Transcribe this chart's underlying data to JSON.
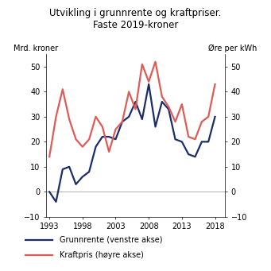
{
  "title": "Utvikling i grunnrente og kraftpriser.\nFaste 2019-kroner",
  "ylabel_left": "Mrd. kroner",
  "ylabel_right": "Øre per kWh",
  "xlabel_ticks": [
    1993,
    1998,
    2003,
    2008,
    2013,
    2018
  ],
  "ylim": [
    -10,
    55
  ],
  "yticks": [
    -10,
    0,
    10,
    20,
    30,
    40,
    50
  ],
  "xlim": [
    1992.5,
    2019.5
  ],
  "grunnrente_years": [
    1993,
    1994,
    1995,
    1996,
    1997,
    1998,
    1999,
    2000,
    2001,
    2002,
    2003,
    2004,
    2005,
    2006,
    2007,
    2008,
    2009,
    2010,
    2011,
    2012,
    2013,
    2014,
    2015,
    2016,
    2017,
    2018
  ],
  "grunnrente_values": [
    0,
    -4,
    9,
    10,
    3,
    6,
    8,
    18,
    22,
    22,
    21,
    28,
    30,
    36,
    29,
    43,
    26,
    36,
    33,
    21,
    20,
    15,
    14,
    20,
    20,
    30
  ],
  "kraftpris_years": [
    1993,
    1994,
    1995,
    1996,
    1997,
    1998,
    1999,
    2000,
    2001,
    2002,
    2003,
    2004,
    2005,
    2006,
    2007,
    2008,
    2009,
    2010,
    2011,
    2012,
    2013,
    2014,
    2015,
    2016,
    2017,
    2018
  ],
  "kraftpris_values": [
    14,
    30,
    41,
    29,
    21,
    18,
    21,
    30,
    26,
    16,
    25,
    28,
    40,
    33,
    51,
    44,
    52,
    38,
    34,
    28,
    35,
    22,
    21,
    28,
    30,
    43
  ],
  "grunnrente_color": "#1a2d6b",
  "kraftpris_color": "#e05a56",
  "legend_grunnrente": "Grunnrente (venstre akse)",
  "legend_kraftpris": "Kraftpris (høyre akse)",
  "line_width": 1.6,
  "background_color": "#ffffff",
  "zero_line_color": "#b0b0b0",
  "title_fontsize": 8.5,
  "label_fontsize": 7,
  "tick_fontsize": 7
}
